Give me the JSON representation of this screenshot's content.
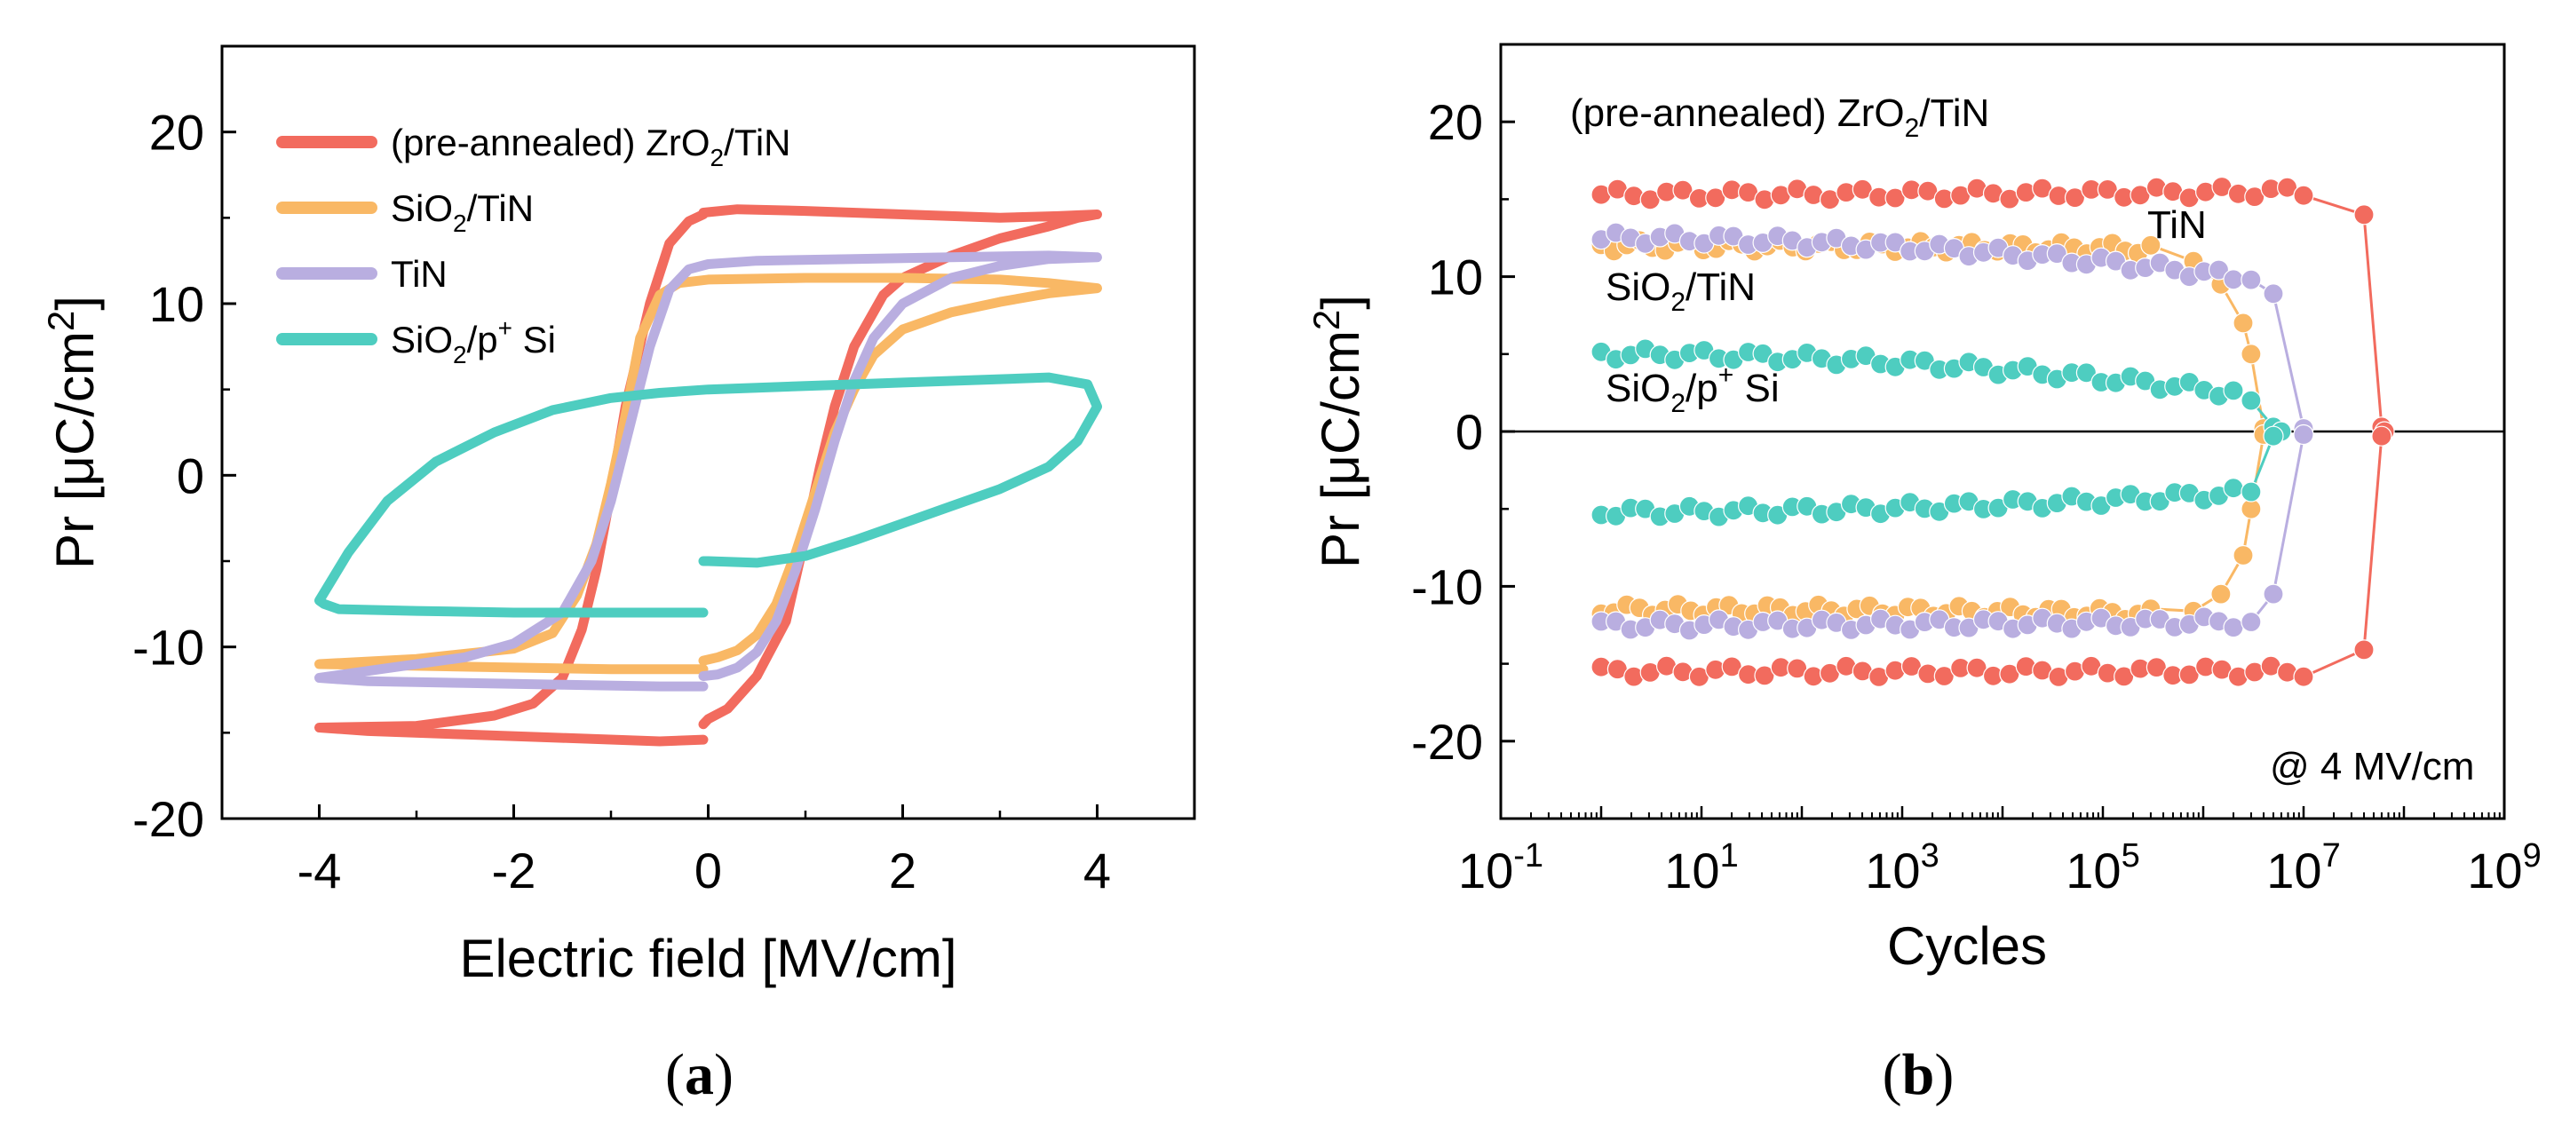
{
  "chart_data": [
    {
      "type": "line",
      "panel": "a",
      "caption": {
        "open": "(",
        "letter": "a",
        "close": ")"
      },
      "xlabel": "Electric field [MV/cm]",
      "ylabel": {
        "base": "Pr [μC/cm",
        "sup": "2",
        "end": "]"
      },
      "xlim": [
        -5,
        5
      ],
      "ylim": [
        -20,
        25
      ],
      "xticks": [
        "-4",
        "-2",
        "0",
        "2",
        "4"
      ],
      "yticks": [
        "-20",
        "-10",
        "0",
        "10",
        "20"
      ],
      "legend": {
        "position": "top-left",
        "entries": [
          {
            "pre": "(pre-annealed) ZrO",
            "sub": "2",
            "post": "/TiN",
            "color": "#f26b5e"
          },
          {
            "pre": "SiO",
            "sub": "2",
            "post": "/TiN",
            "color": "#f9b865"
          },
          {
            "pre": "TiN",
            "sub": "",
            "post": "",
            "color": "#b9aee0"
          },
          {
            "pre": "SiO",
            "sub": "2",
            "post": "/p",
            "sup": "+",
            "post2": " Si",
            "color": "#4ecdc0"
          }
        ]
      },
      "series": [
        {
          "name": "(pre-annealed) ZrO2/TiN",
          "color": "#f26b5e",
          "x": [
            -0.05,
            -0.5,
            -1.5,
            -2.5,
            -3.5,
            -4.0,
            -3.0,
            -2.2,
            -1.8,
            -1.5,
            -1.3,
            -1.15,
            -1.0,
            -0.85,
            -0.6,
            -0.4,
            -0.2,
            -0.05,
            -0.05,
            0.3,
            1.0,
            2.0,
            3.0,
            3.6,
            4.0,
            3.8,
            3.5,
            3.0,
            2.5,
            2.0,
            1.8,
            1.5,
            1.3,
            1.15,
            1.0,
            0.8,
            0.5,
            0.2,
            0,
            -0.05
          ],
          "y": [
            -15.4,
            -15.5,
            -15.3,
            -15.1,
            -14.9,
            -14.7,
            -14.6,
            -14.0,
            -13.3,
            -11.8,
            -9.0,
            -5.5,
            -1.0,
            4.0,
            10.0,
            13.5,
            14.8,
            15.2,
            15.3,
            15.5,
            15.4,
            15.2,
            15.0,
            15.1,
            15.2,
            15.0,
            14.5,
            13.8,
            12.8,
            11.5,
            10.5,
            7.5,
            4.0,
            0.5,
            -3.5,
            -8.5,
            -11.7,
            -13.6,
            -14.2,
            -14.5
          ]
        },
        {
          "name": "SiO2/TiN",
          "color": "#f9b865",
          "x": [
            -0.05,
            -1.0,
            -2.0,
            -3.0,
            -4.0,
            -3.0,
            -2.0,
            -1.6,
            -1.35,
            -1.15,
            -1.0,
            -0.85,
            -0.7,
            -0.5,
            -0.3,
            0,
            1.0,
            2.0,
            3.0,
            3.5,
            4.0,
            3.5,
            3.0,
            2.5,
            2.0,
            1.7,
            1.5,
            1.3,
            1.1,
            0.9,
            0.7,
            0.5,
            0.3,
            0.1,
            -0.05
          ],
          "y": [
            -11.3,
            -11.3,
            -11.2,
            -11.1,
            -11.0,
            -10.7,
            -10.1,
            -9.2,
            -7.0,
            -4.0,
            -0.5,
            3.5,
            8.0,
            10.5,
            11.2,
            11.4,
            11.5,
            11.5,
            11.4,
            11.2,
            10.9,
            10.6,
            10.1,
            9.5,
            8.5,
            7.0,
            5.0,
            2.5,
            -1.0,
            -4.5,
            -7.5,
            -9.3,
            -10.2,
            -10.6,
            -10.8
          ]
        },
        {
          "name": "TiN",
          "color": "#b9aee0",
          "x": [
            -0.05,
            -0.5,
            -1.5,
            -2.5,
            -3.5,
            -4.0,
            -3.5,
            -2.5,
            -2.0,
            -1.5,
            -1.2,
            -1.0,
            -0.8,
            -0.6,
            -0.4,
            -0.2,
            0,
            0.5,
            1.5,
            2.5,
            3.5,
            4.0,
            3.5,
            3.0,
            2.5,
            2.0,
            1.7,
            1.5,
            1.3,
            1.1,
            0.9,
            0.7,
            0.5,
            0.3,
            0.1,
            -0.05
          ],
          "y": [
            -12.3,
            -12.3,
            -12.2,
            -12.1,
            -12.0,
            -11.8,
            -11.4,
            -10.6,
            -9.8,
            -8.0,
            -5.0,
            -1.5,
            3.0,
            7.5,
            10.8,
            12.0,
            12.3,
            12.5,
            12.6,
            12.7,
            12.8,
            12.7,
            12.6,
            12.2,
            11.5,
            10.0,
            8.0,
            5.5,
            2.0,
            -2.0,
            -5.5,
            -8.5,
            -10.3,
            -11.2,
            -11.6,
            -11.7
          ]
        },
        {
          "name": "SiO2/p+ Si",
          "color": "#4ecdc0",
          "x": [
            -0.05,
            -1.0,
            -2.0,
            -3.0,
            -3.8,
            -3.95,
            -4.0,
            -3.7,
            -3.3,
            -2.8,
            -2.2,
            -1.6,
            -1.0,
            -0.5,
            0,
            0.5,
            1.0,
            1.5,
            2.0,
            2.5,
            3.0,
            3.5,
            3.9,
            4.0,
            3.8,
            3.5,
            3.0,
            2.5,
            2.0,
            1.5,
            1.0,
            0.5,
            0,
            -0.05
          ],
          "y": [
            -8.0,
            -8.0,
            -8.0,
            -7.9,
            -7.8,
            -7.5,
            -7.3,
            -4.5,
            -1.5,
            0.8,
            2.5,
            3.8,
            4.5,
            4.8,
            5.0,
            5.1,
            5.2,
            5.3,
            5.4,
            5.5,
            5.6,
            5.7,
            5.3,
            4.0,
            2.0,
            0.5,
            -0.8,
            -1.8,
            -2.8,
            -3.8,
            -4.7,
            -5.1,
            -5.0,
            -5.0
          ]
        }
      ]
    },
    {
      "type": "line",
      "panel": "b",
      "caption": {
        "open": "(",
        "letter": "b",
        "close": ")"
      },
      "xlabel": "Cycles",
      "ylabel": {
        "base": "Pr [μC/cm",
        "sup": "2",
        "end": "]"
      },
      "xscale": "log",
      "xlim": [
        0.1,
        1000000000
      ],
      "ylim": [
        -25,
        25
      ],
      "xticks": [
        {
          "base": "10",
          "exp": "-1"
        },
        {
          "base": "10",
          "exp": "1"
        },
        {
          "base": "10",
          "exp": "3"
        },
        {
          "base": "10",
          "exp": "5"
        },
        {
          "base": "10",
          "exp": "7"
        },
        {
          "base": "10",
          "exp": "9"
        }
      ],
      "yticks": [
        "-20",
        "-10",
        "0",
        "10",
        "20"
      ],
      "hline": 0,
      "annotations": {
        "zrtin": {
          "pre": "(pre-annealed) ZrO",
          "sub": "2",
          "post": "/TiN"
        },
        "tin": {
          "pre": "TiN"
        },
        "siotin": {
          "pre": "SiO",
          "sub": "2",
          "post": "/TiN"
        },
        "siopsi": {
          "pre": "SiO",
          "sub": "2",
          "post": "/p",
          "sup": "+",
          "post2": " Si"
        },
        "field": "@ 4 MV/cm"
      },
      "series": [
        {
          "name": "(pre-annealed) ZrO2/TiN",
          "color": "#f26b5e",
          "upper": {
            "start": 15.3,
            "end": 15.5,
            "last": [
              [
                40000000,
                14.0
              ],
              [
                60000000,
                0.3
              ],
              [
                64000000,
                0.0
              ]
            ]
          },
          "lower": {
            "start": -15.5,
            "end": -15.5,
            "last": [
              [
                40000000,
                -14.1
              ],
              [
                60000000,
                -0.3
              ]
            ]
          },
          "stop": 10000000
        },
        {
          "name": "SiO2/TiN",
          "color": "#f9b865",
          "upper": {
            "start": 12.0,
            "end": 11.8,
            "last": [
              [
                800000,
                11.0
              ],
              [
                1500000,
                9.5
              ],
              [
                2500000,
                7.0
              ],
              [
                3000000,
                5.0
              ],
              [
                4000000,
                0.2
              ]
            ]
          },
          "lower": {
            "start": -11.5,
            "end": -11.8,
            "last": [
              [
                800000,
                -11.6
              ],
              [
                1500000,
                -10.5
              ],
              [
                2500000,
                -8.0
              ],
              [
                3000000,
                -5.0
              ],
              [
                4000000,
                -0.2
              ]
            ]
          },
          "stop": 300000
        },
        {
          "name": "TiN",
          "color": "#b9aee0",
          "upper": {
            "start": 12.5,
            "end": 10.0,
            "last": [
              [
                3000000,
                9.8
              ],
              [
                5000000,
                8.9
              ],
              [
                10000000,
                0.2
              ]
            ]
          },
          "lower": {
            "start": -12.5,
            "end": -12.3,
            "last": [
              [
                3000000,
                -12.3
              ],
              [
                5000000,
                -10.5
              ],
              [
                10000000,
                -0.2
              ]
            ]
          },
          "stop": 2000000
        },
        {
          "name": "SiO2/p+ Si",
          "color": "#4ecdc0",
          "upper": {
            "start": 5.0,
            "end": 2.5,
            "last": [
              [
                3000000,
                2.0
              ],
              [
                5000000,
                0.3
              ],
              [
                6000000,
                0.0
              ]
            ]
          },
          "lower": {
            "start": -5.2,
            "end": -4.0,
            "last": [
              [
                3000000,
                -3.9
              ],
              [
                5000000,
                -0.3
              ]
            ]
          },
          "stop": 2000000
        }
      ]
    }
  ]
}
